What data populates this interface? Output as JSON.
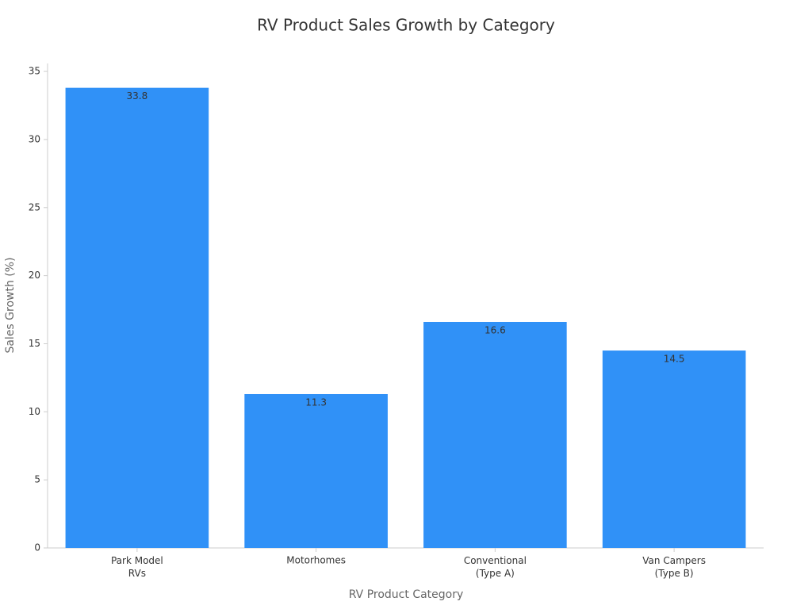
{
  "chart_data": {
    "type": "bar",
    "title": "RV Product Sales Growth by Category",
    "x_label": "RV Product Category",
    "y_label": "Sales Growth (%)",
    "categories": [
      "Park Model\nRVs",
      "Motorhomes",
      "Conventional\n(Type A)",
      "Van Campers\n(Type B)"
    ],
    "values": [
      33.8,
      11.3,
      16.6,
      14.5
    ],
    "color": "#3091f7",
    "ylim": [
      0,
      35.5
    ],
    "yticks": [
      0,
      5,
      10,
      15,
      20,
      25,
      30,
      35
    ],
    "grid": false
  }
}
